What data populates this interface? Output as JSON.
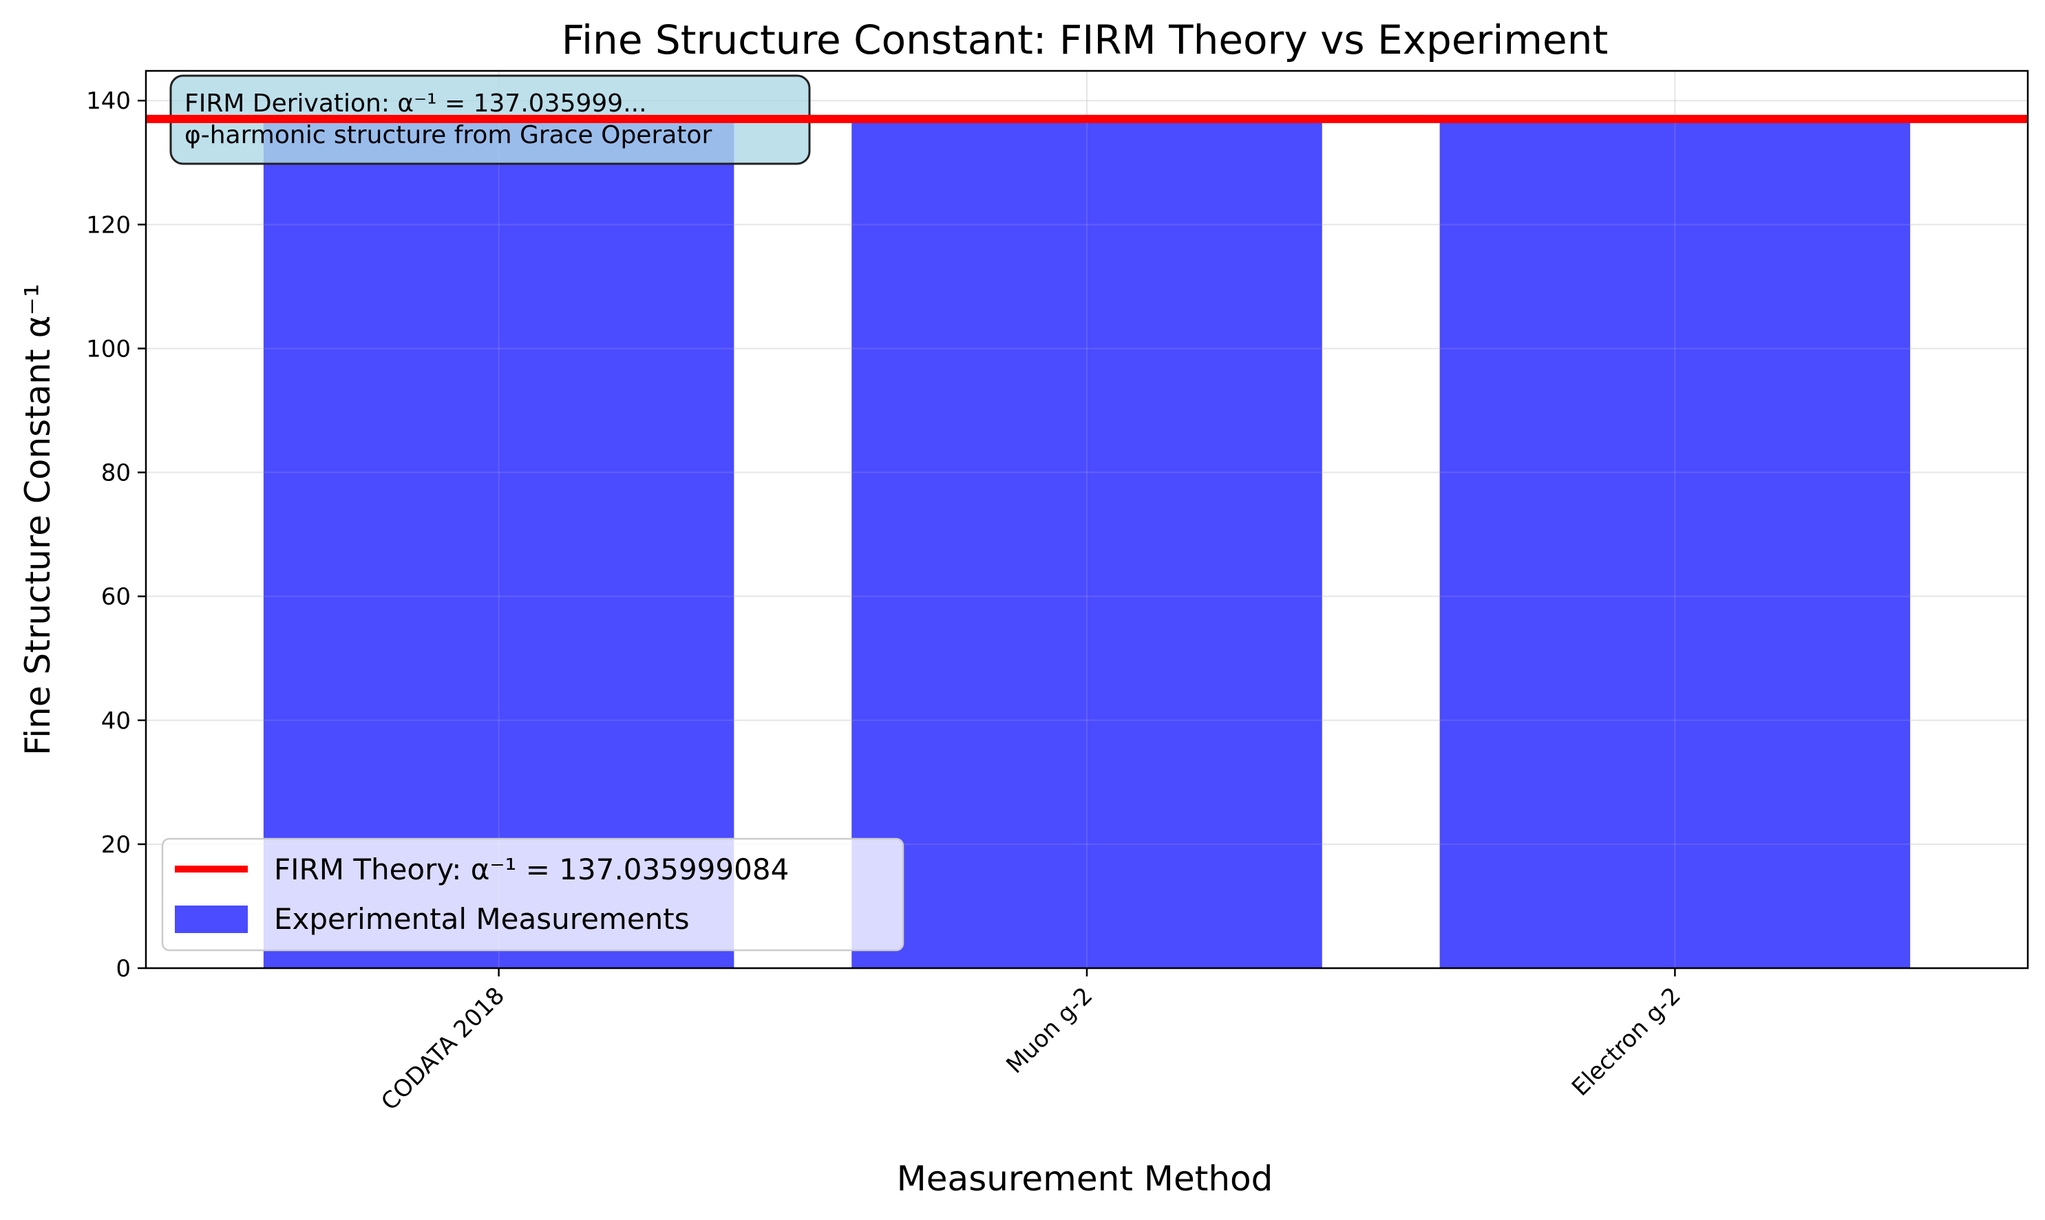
{
  "chart_data": {
    "type": "bar",
    "title": "Fine Structure Constant: FIRM Theory vs Experiment",
    "xlabel": "Measurement Method",
    "ylabel": "Fine Structure Constant α⁻¹",
    "categories": [
      "CODATA 2018",
      "Muon g-2",
      "Electron g-2"
    ],
    "series": [
      {
        "name": "Experimental Measurements",
        "values": [
          137.035999,
          137.035999,
          137.035999
        ],
        "color": "#4b4bff"
      }
    ],
    "reference_line": {
      "label": "FIRM Theory: α⁻¹ = 137.035999084",
      "value": 137.035999084,
      "color": "#ff0000"
    },
    "annotation": {
      "line1": "FIRM Derivation: α⁻¹ = 137.035999...",
      "line2": "φ-harmonic structure from Grace Operator",
      "box_color": "#add8e6"
    },
    "ylim": [
      0,
      144.8
    ],
    "yticks": [
      0,
      20,
      40,
      60,
      80,
      100,
      120,
      140
    ],
    "grid": true,
    "legend_position": "lower-left",
    "xtick_rotation": "45"
  }
}
